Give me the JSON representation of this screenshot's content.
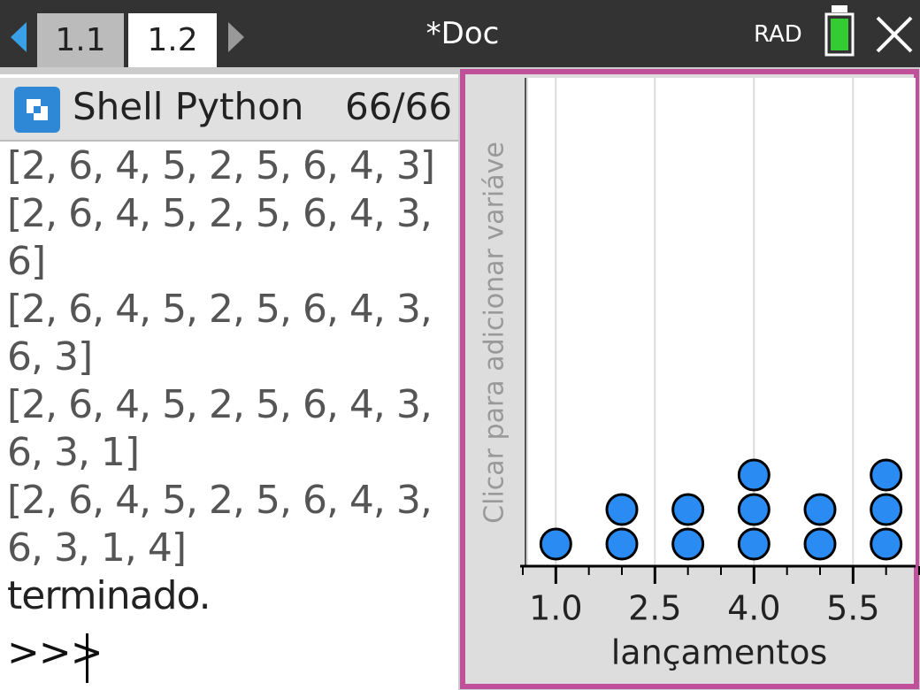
{
  "header": {
    "tabs": [
      "1.1",
      "1.2"
    ],
    "title": "*Doc",
    "mode": "RAD"
  },
  "shell": {
    "title": "Shell Python",
    "counter": "66/66",
    "lines": [
      "[2, 6, 4, 5, 2, 5, 6, 4, 3]",
      "[2, 6, 4, 5, 2, 5, 6, 4, 3,",
      "6]",
      "[2, 6, 4, 5, 2, 5, 6, 4, 3,",
      "6, 3]",
      "[2, 6, 4, 5, 2, 5, 6, 4, 3,",
      "6, 3, 1]",
      "[2, 6, 4, 5, 2, 5, 6, 4, 3,",
      "6, 3, 1, 4]",
      "terminado."
    ],
    "prompt": ">>>"
  },
  "chart_data": {
    "type": "dot",
    "x_label": "lançamentos",
    "y_label": "Clicar para adicionar variáve",
    "values": [
      2,
      6,
      4,
      5,
      2,
      5,
      6,
      4,
      3,
      6,
      3,
      1,
      4
    ],
    "color": "#2a8cf2",
    "xlim": [
      0.5,
      6.5
    ],
    "xticks": [
      {
        "value": 1,
        "label": "1.0"
      },
      {
        "value": 2.5,
        "label": "2.5"
      },
      {
        "value": 4,
        "label": "4.0"
      },
      {
        "value": 5.5,
        "label": "5.5"
      }
    ],
    "xminor_ticks": [
      0.5,
      1,
      1.5,
      2,
      2.5,
      3,
      3.5,
      4,
      4.5,
      5,
      5.5,
      6,
      6.5
    ],
    "grid": true
  }
}
